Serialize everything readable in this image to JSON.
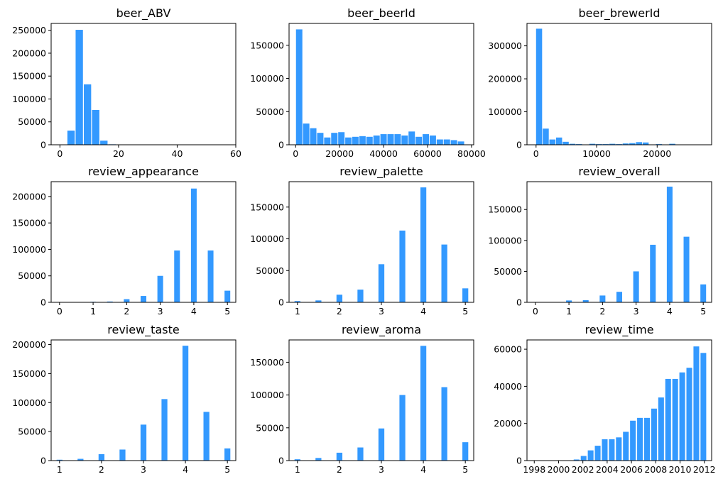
{
  "chart_data": [
    {
      "type": "bar",
      "title": "beer_ABV",
      "bar_color": "#3399ff",
      "xlim": [
        -3,
        60
      ],
      "ylim": [
        0,
        265000
      ],
      "xticks": [
        "0",
        "20",
        "40",
        "60"
      ],
      "yticks": [
        "0",
        "50000",
        "100000",
        "150000",
        "200000",
        "250000"
      ],
      "x": [
        1.0,
        3.8,
        6.6,
        9.4,
        12.2,
        15,
        17.8,
        20.6,
        23.4,
        26.2,
        29,
        31.8,
        34.6,
        37.4,
        40.2,
        43,
        45.8,
        48.6,
        51.4,
        54.2,
        57
      ],
      "values": [
        200,
        31000,
        251000,
        132000,
        76000,
        9000,
        1000,
        300,
        200,
        100,
        100,
        50,
        50,
        30,
        30,
        20,
        20,
        10,
        10,
        10,
        10
      ],
      "bar_width": 2.5
    },
    {
      "type": "bar",
      "title": "beer_beerId",
      "bar_color": "#3399ff",
      "xlim": [
        -3000,
        81000
      ],
      "ylim": [
        0,
        183000
      ],
      "xticks": [
        "0",
        "20000",
        "40000",
        "60000",
        "80000"
      ],
      "yticks": [
        "0",
        "50000",
        "100000",
        "150000"
      ],
      "x": [
        1600,
        4800,
        8000,
        11200,
        14400,
        17600,
        20800,
        24000,
        27200,
        30400,
        33600,
        36800,
        40000,
        43200,
        46400,
        49600,
        52800,
        56000,
        59200,
        62400,
        65600,
        68800,
        72000,
        75200
      ],
      "values": [
        174000,
        32000,
        25000,
        18000,
        11000,
        18000,
        19000,
        11000,
        12000,
        13000,
        12000,
        14000,
        16000,
        16000,
        16000,
        14000,
        20000,
        12000,
        16000,
        14000,
        8000,
        8000,
        7000,
        5000
      ],
      "bar_width": 2900
    },
    {
      "type": "bar",
      "title": "beer_brewerId",
      "bar_color": "#3399ff",
      "xlim": [
        -1500,
        29000
      ],
      "ylim": [
        0,
        368000
      ],
      "xticks": [
        "0",
        "10000",
        "20000"
      ],
      "yticks": [
        "0",
        "100000",
        "200000",
        "300000"
      ],
      "x": [
        500,
        1600,
        2700,
        3800,
        4900,
        6000,
        7100,
        8200,
        9300,
        10400,
        11500,
        12600,
        13700,
        14800,
        15900,
        17000,
        18100,
        19200,
        20300,
        21400,
        22500,
        23600,
        24700,
        25800,
        26900
      ],
      "values": [
        352000,
        49000,
        16000,
        22000,
        9000,
        3000,
        2000,
        1000,
        3000,
        2000,
        2000,
        3000,
        2000,
        4000,
        5000,
        8000,
        7000,
        1000,
        2000,
        1000,
        3000,
        1000,
        500,
        300,
        200
      ],
      "bar_width": 1000
    },
    {
      "type": "bar",
      "title": "review_appearance",
      "bar_color": "#3399ff",
      "xlim": [
        -0.25,
        5.25
      ],
      "ylim": [
        0,
        228000
      ],
      "xticks": [
        "0",
        "1",
        "2",
        "3",
        "4",
        "5"
      ],
      "yticks": [
        "0",
        "50000",
        "100000",
        "150000",
        "200000"
      ],
      "x": [
        0,
        1,
        1.5,
        2,
        2.5,
        3,
        3.5,
        4,
        4.5,
        5
      ],
      "values": [
        20,
        1000,
        1500,
        6000,
        12000,
        50000,
        98000,
        215000,
        98000,
        22000
      ],
      "bar_width": 0.17
    },
    {
      "type": "bar",
      "title": "review_palette",
      "bar_color": "#3399ff",
      "xlim": [
        0.8,
        5.2
      ],
      "ylim": [
        0,
        190000
      ],
      "xticks": [
        "1",
        "2",
        "3",
        "4",
        "5"
      ],
      "yticks": [
        "0",
        "50000",
        "100000",
        "150000"
      ],
      "x": [
        1,
        1.5,
        2,
        2.5,
        3,
        3.5,
        4,
        4.5,
        5
      ],
      "values": [
        2000,
        3000,
        12000,
        20000,
        60000,
        113000,
        181000,
        91000,
        22000
      ],
      "bar_width": 0.14
    },
    {
      "type": "bar",
      "title": "review_overall",
      "bar_color": "#3399ff",
      "xlim": [
        -0.25,
        5.25
      ],
      "ylim": [
        0,
        195000
      ],
      "xticks": [
        "0",
        "1",
        "2",
        "3",
        "4",
        "5"
      ],
      "yticks": [
        "0",
        "50000",
        "100000",
        "150000"
      ],
      "x": [
        0,
        1,
        1.5,
        2,
        2.5,
        3,
        3.5,
        4,
        4.5,
        5
      ],
      "values": [
        20,
        3000,
        3500,
        11000,
        17000,
        50000,
        93000,
        187000,
        106000,
        29000
      ],
      "bar_width": 0.17
    },
    {
      "type": "bar",
      "title": "review_taste",
      "bar_color": "#3399ff",
      "xlim": [
        0.8,
        5.2
      ],
      "ylim": [
        0,
        208000
      ],
      "xticks": [
        "1",
        "2",
        "3",
        "4",
        "5"
      ],
      "yticks": [
        "0",
        "50000",
        "100000",
        "150000",
        "200000"
      ],
      "x": [
        1,
        1.5,
        2,
        2.5,
        3,
        3.5,
        4,
        4.5,
        5
      ],
      "values": [
        1500,
        3000,
        11000,
        19000,
        62000,
        106000,
        198000,
        84000,
        21000
      ],
      "bar_width": 0.14
    },
    {
      "type": "bar",
      "title": "review_aroma",
      "bar_color": "#3399ff",
      "xlim": [
        0.8,
        5.2
      ],
      "ylim": [
        0,
        184000
      ],
      "xticks": [
        "1",
        "2",
        "3",
        "4",
        "5"
      ],
      "yticks": [
        "0",
        "50000",
        "100000",
        "150000"
      ],
      "x": [
        1,
        1.5,
        2,
        2.5,
        3,
        3.5,
        4,
        4.5,
        5
      ],
      "values": [
        2000,
        4000,
        12000,
        20000,
        49000,
        100000,
        175000,
        112000,
        28000
      ],
      "bar_width": 0.14
    },
    {
      "type": "bar",
      "title": "review_time",
      "bar_color": "#3399ff",
      "xlim": [
        1997.4,
        2012.6
      ],
      "ylim": [
        0,
        65000
      ],
      "xticks": [
        "1998",
        "2000",
        "2002",
        "2004",
        "2006",
        "2008",
        "2010",
        "2012"
      ],
      "yticks": [
        "0",
        "20000",
        "40000",
        "60000"
      ],
      "x": [
        1998,
        1998.58,
        1999.16,
        1999.74,
        2000.32,
        2000.9,
        2001.48,
        2002.06,
        2002.64,
        2003.22,
        2003.8,
        2004.38,
        2004.96,
        2005.54,
        2006.12,
        2006.7,
        2007.28,
        2007.86,
        2008.44,
        2009.02,
        2009.6,
        2010.18,
        2010.76,
        2011.34,
        2011.92
      ],
      "values": [
        20,
        20,
        30,
        30,
        50,
        100,
        600,
        2500,
        5500,
        8000,
        11500,
        11500,
        12500,
        15500,
        21500,
        23000,
        23000,
        28000,
        34000,
        44000,
        44000,
        47500,
        50000,
        61500,
        58000
      ],
      "bar_width": 0.47
    }
  ]
}
